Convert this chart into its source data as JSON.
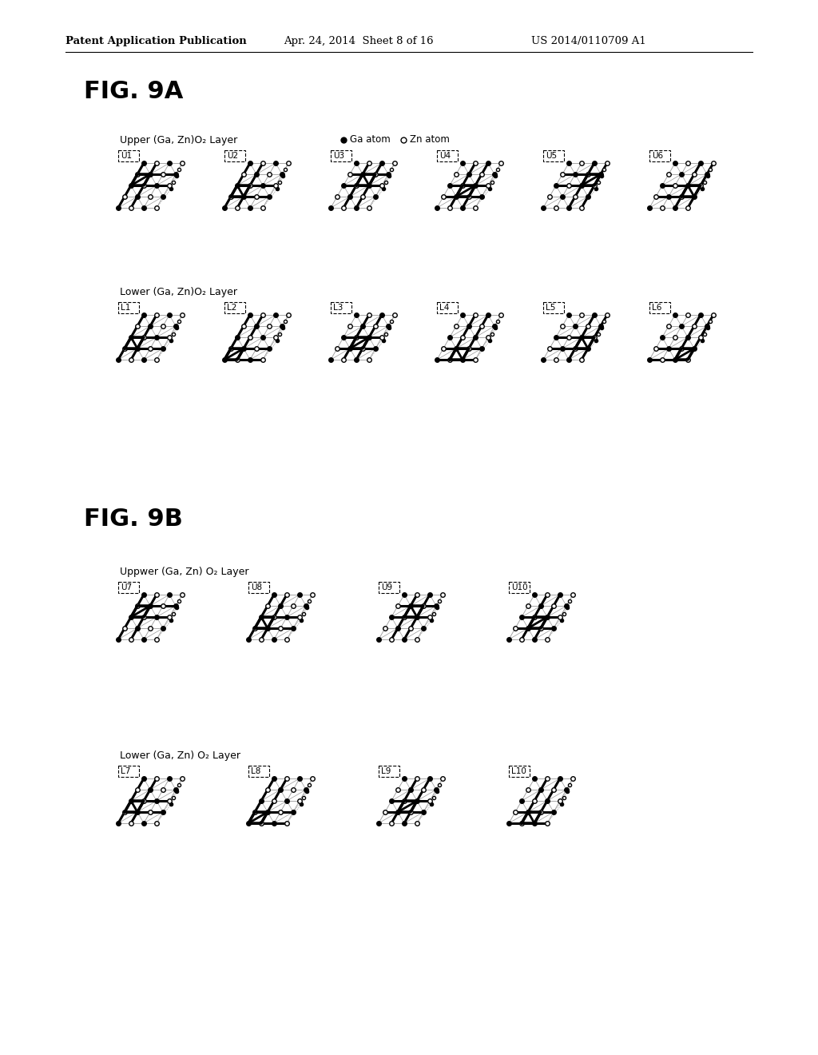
{
  "bg_color": "#ffffff",
  "header_left": "Patent Application Publication",
  "header_mid": "Apr. 24, 2014  Sheet 8 of 16",
  "header_right": "US 2014/0110709 A1",
  "fig9a_title": "FIG. 9A",
  "fig9b_title": "FIG. 9B",
  "fig9a_upper_label": "Upper (Ga, Zn)O₂ Layer",
  "fig9a_lower_label": "Lower (Ga, Zn)O₂ Layer",
  "fig9b_upper_label": "Uppwer (Ga, Zn) O₂ Layer",
  "fig9b_lower_label": "Lower (Ga, Zn) O₂ Layer",
  "legend_ga": "Ga atom",
  "legend_zn": "Zn atom",
  "upper_labels_9a": [
    "U1",
    "U2",
    "U3",
    "U4",
    "U5",
    "U6"
  ],
  "lower_labels_9a": [
    "L1",
    "L2",
    "L3",
    "L4",
    "L5",
    "L6"
  ],
  "upper_labels_9b": [
    "U7",
    "U8",
    "U9",
    "U10"
  ],
  "lower_labels_9b": [
    "L7",
    "L8",
    "L9",
    "L10"
  ],
  "line_color": "#000000",
  "gray_color": "#999999",
  "light_gray": "#bbbbbb"
}
